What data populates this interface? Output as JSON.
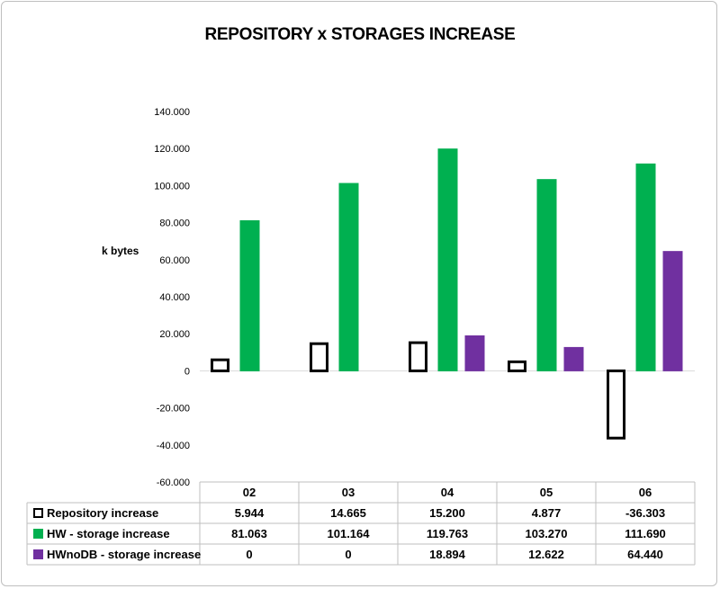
{
  "chart_data": {
    "type": "bar",
    "title": "REPOSITORY x STORAGES INCREASE",
    "xlabel": "",
    "ylabel": "k bytes",
    "ylim": [
      -60000,
      140000
    ],
    "yticks": [
      140000,
      120000,
      100000,
      80000,
      60000,
      40000,
      20000,
      0,
      -20000,
      -40000,
      -60000
    ],
    "ytick_labels": [
      "140.000",
      "120.000",
      "100.000",
      "80.000",
      "60.000",
      "40.000",
      "20.000",
      "0",
      "-20.000",
      "-40.000",
      "-60.000"
    ],
    "categories": [
      "02",
      "03",
      "04",
      "05",
      "06"
    ],
    "legend": "data-table",
    "series": [
      {
        "name": "Repository increase",
        "color": "#ffffff",
        "stroke": "#000000",
        "values": [
          5944,
          14665,
          15200,
          4877,
          -36303
        ],
        "labels": [
          "5.944",
          "14.665",
          "15.200",
          "4.877",
          "-36.303"
        ]
      },
      {
        "name": "HW - storage increase",
        "color": "#00b050",
        "stroke": "#00b050",
        "values": [
          81063,
          101164,
          119763,
          103270,
          111690
        ],
        "labels": [
          "81.063",
          "101.164",
          "119.763",
          "103.270",
          "111.690"
        ]
      },
      {
        "name": "HWnoDB - storage increase",
        "color": "#7030a0",
        "stroke": "#7030a0",
        "values": [
          0,
          0,
          18894,
          12622,
          64440
        ],
        "labels": [
          "0",
          "0",
          "18.894",
          "12.622",
          "64.440"
        ]
      }
    ]
  }
}
